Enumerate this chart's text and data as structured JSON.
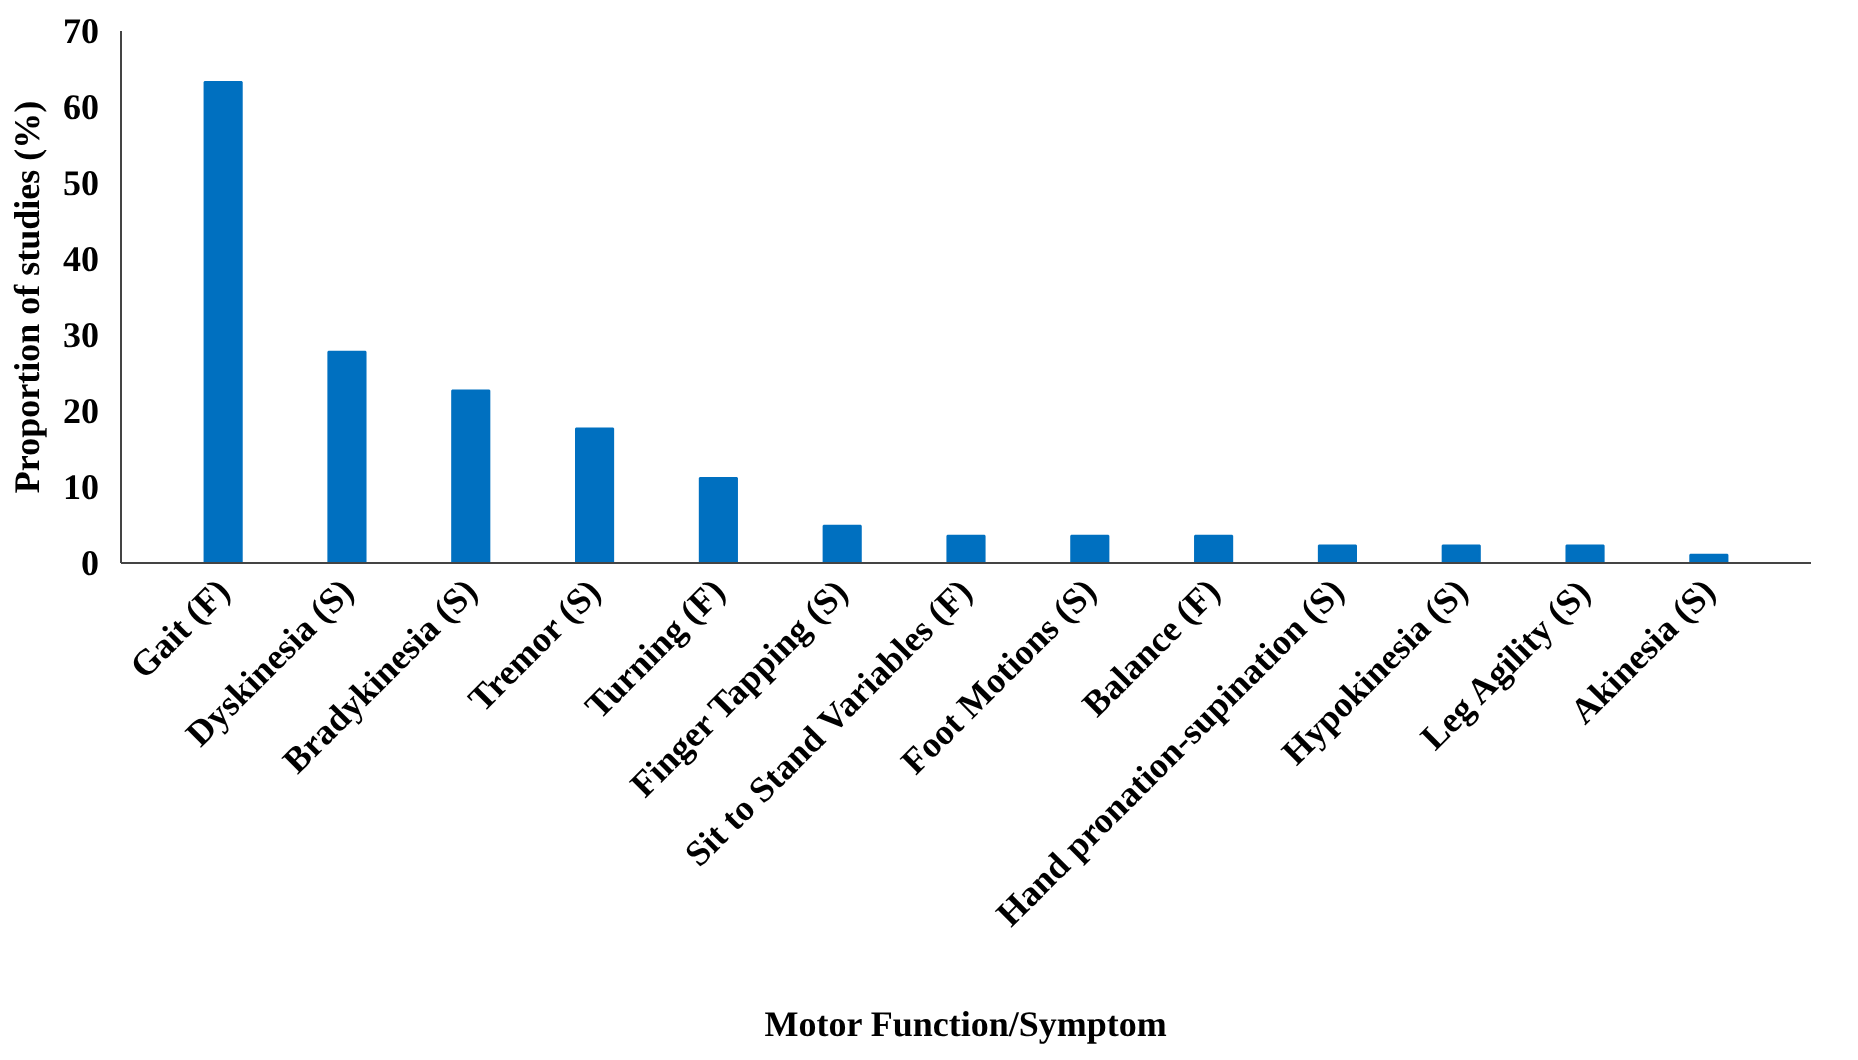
{
  "chart_data": {
    "type": "bar",
    "xlabel": "Motor Function/Symptom",
    "ylabel": "Proportion of studies (%)",
    "categories": [
      "Gait (F)",
      "Dyskinesia (S)",
      "Bradykinesia (S)",
      "Tremor (S)",
      "Turning (F)",
      "Finger Tapping (S)",
      "Sit to Stand Variables (F)",
      "Foot Motions (S)",
      "Balance (F)",
      "Hand pronation-supination (S)",
      "Hypokinesia (S)",
      "Leg Agility (S)",
      "Akinesia (S)"
    ],
    "values": [
      63.3,
      27.8,
      22.7,
      17.7,
      11.2,
      4.9,
      3.6,
      3.6,
      3.6,
      2.3,
      2.3,
      2.3,
      1.1
    ],
    "color": "#0070c0",
    "ylim": [
      0,
      70
    ],
    "yticks": [
      0,
      10,
      20,
      30,
      40,
      50,
      60,
      70
    ],
    "grid": false
  }
}
